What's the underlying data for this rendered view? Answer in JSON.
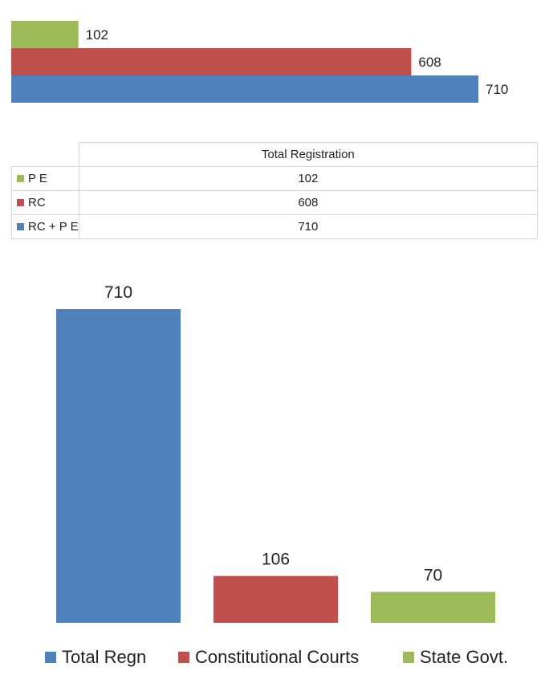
{
  "chart_data": [
    {
      "type": "bar",
      "orientation": "horizontal",
      "title": "",
      "table_header": "Total Registration",
      "xlim": [
        0,
        800
      ],
      "series": [
        {
          "name": "P E",
          "value": 102,
          "color": "#9BBB59"
        },
        {
          "name": "RC",
          "value": 608,
          "color": "#C0504D"
        },
        {
          "name": "RC + P E",
          "value": 710,
          "color": "#4F81BD"
        }
      ]
    },
    {
      "type": "bar",
      "orientation": "vertical",
      "title": "",
      "ylim": [
        0,
        720
      ],
      "categories": [
        "Total Regn",
        "Constitutional Courts",
        "State Govt."
      ],
      "values": [
        710,
        106,
        70
      ],
      "colors": [
        "#4F81BD",
        "#C0504D",
        "#9BBB59"
      ],
      "legend_position": "bottom"
    }
  ]
}
